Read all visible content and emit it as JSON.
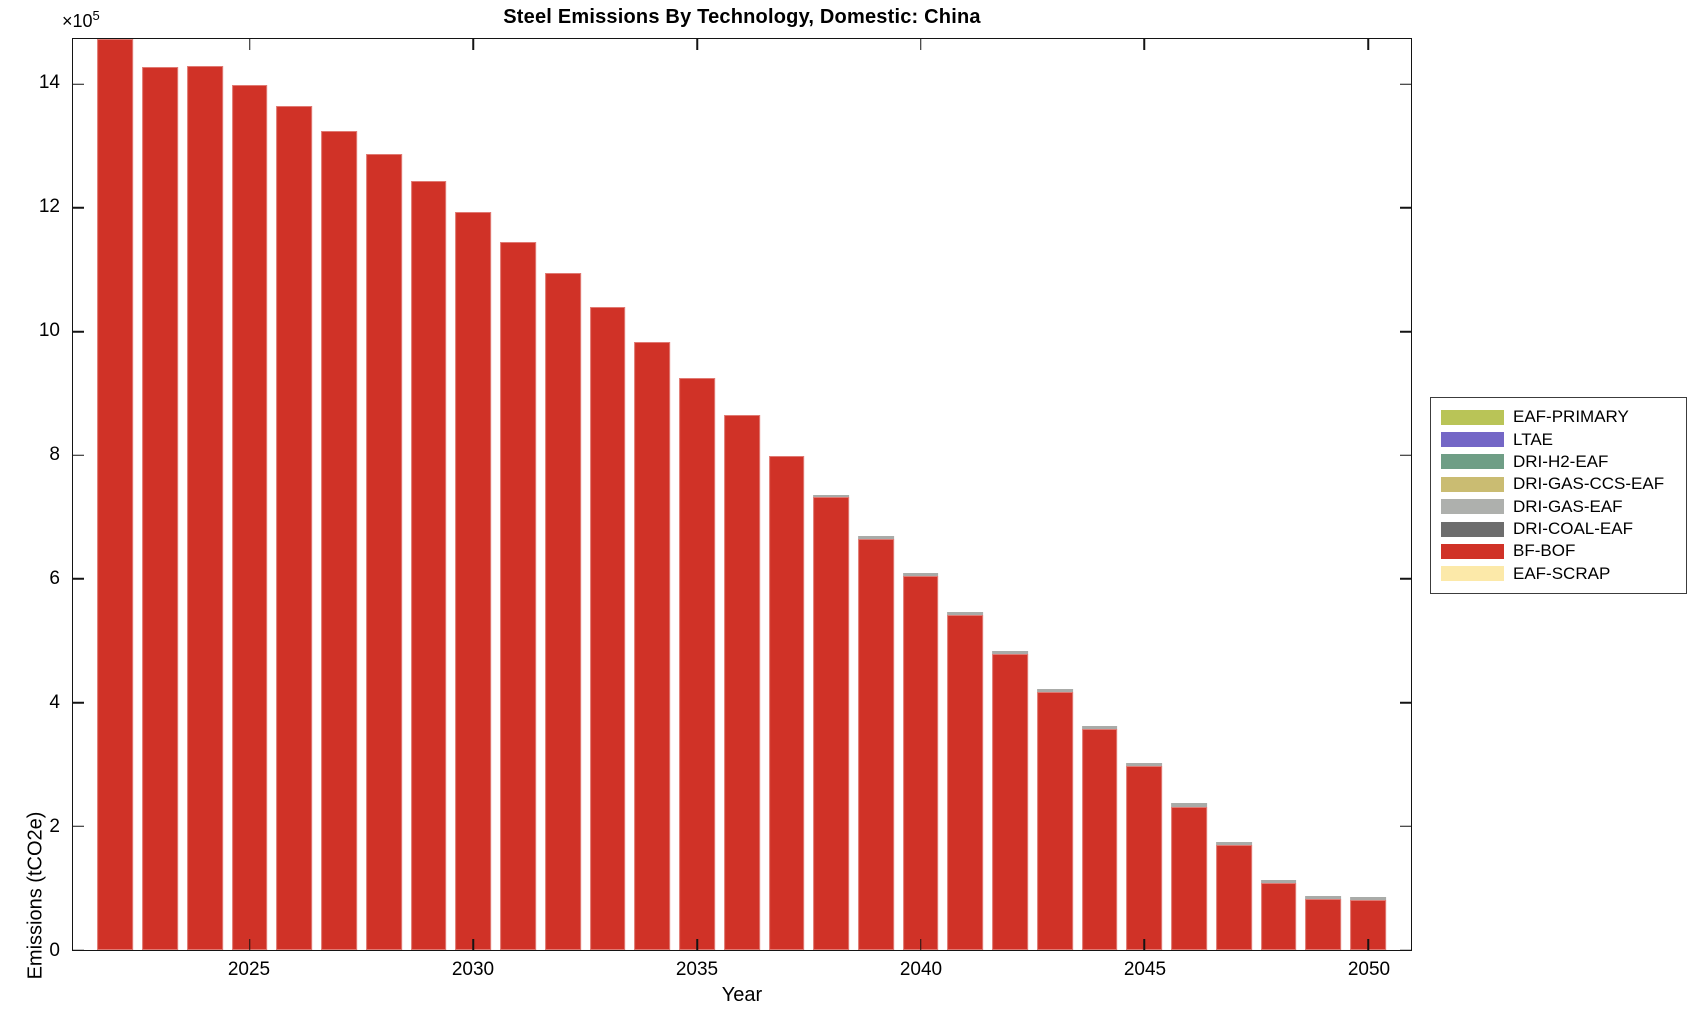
{
  "title": "Steel Emissions By Technology, Domestic: China",
  "axes": {
    "xlabel": "Year",
    "ylabel": "Emissions (tCO2e)",
    "exponent_base": "×10",
    "exponent_power": "5",
    "x_ticks": [
      2025,
      2030,
      2035,
      2040,
      2045,
      2050
    ],
    "y_ticks": [
      0,
      2,
      4,
      6,
      8,
      10,
      12,
      14
    ],
    "x_range": [
      2021.05,
      2050.96
    ],
    "y_max": 14.73
  },
  "legend": {
    "entries": [
      {
        "label": "EAF-PRIMARY",
        "color": "#b9c457"
      },
      {
        "label": "LTAE",
        "color": "#7467c6"
      },
      {
        "label": "DRI-H2-EAF",
        "color": "#6f9e86"
      },
      {
        "label": "DRI-GAS-CCS-EAF",
        "color": "#cabc72"
      },
      {
        "label": "DRI-GAS-EAF",
        "color": "#aeb0ad"
      },
      {
        "label": "DRI-COAL-EAF",
        "color": "#6d6d6d"
      },
      {
        "label": "BF-BOF",
        "color": "#d03227"
      },
      {
        "label": "EAF-SCRAP",
        "color": "#fce9a9"
      }
    ]
  },
  "chart_data": {
    "type": "bar",
    "stacked": true,
    "title": "Steel Emissions By Technology, Domestic: China",
    "xlabel": "Year",
    "ylabel": "Emissions (tCO2e)",
    "value_units": "1e5 tCO2e",
    "ylim": [
      0,
      14.73
    ],
    "grid": false,
    "legend_position": "right-outside",
    "x": [
      2022,
      2023,
      2024,
      2025,
      2026,
      2027,
      2028,
      2029,
      2030,
      2031,
      2032,
      2033,
      2034,
      2035,
      2036,
      2037,
      2038,
      2039,
      2040,
      2041,
      2042,
      2043,
      2044,
      2045,
      2046,
      2047,
      2048,
      2049,
      2050
    ],
    "series": [
      {
        "name": "BF-BOF",
        "color": "#d03227",
        "values": [
          14.73,
          14.27,
          14.29,
          13.98,
          13.64,
          13.25,
          12.87,
          12.43,
          11.94,
          11.45,
          10.94,
          10.39,
          9.83,
          9.25,
          8.65,
          7.99,
          7.32,
          6.65,
          6.05,
          5.41,
          4.79,
          4.17,
          3.58,
          2.98,
          2.32,
          1.7,
          1.09,
          0.83,
          0.81
        ]
      },
      {
        "name": "DRI-GAS-EAF",
        "color": "#a9aba8",
        "values": [
          0,
          0,
          0,
          0,
          0,
          0,
          0,
          0,
          0,
          0,
          0,
          0,
          0,
          0,
          0,
          0,
          0.04,
          0.04,
          0.05,
          0.05,
          0.05,
          0.05,
          0.05,
          0.05,
          0.05,
          0.04,
          0.04,
          0.04,
          0.04
        ]
      }
    ]
  }
}
